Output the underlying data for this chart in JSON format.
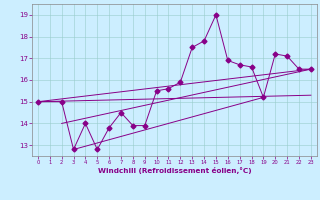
{
  "title": "",
  "xlabel": "Windchill (Refroidissement éolien,°C)",
  "ylabel": "",
  "xlim": [
    -0.5,
    23.5
  ],
  "ylim": [
    12.5,
    19.5
  ],
  "xticks": [
    0,
    1,
    2,
    3,
    4,
    5,
    6,
    7,
    8,
    9,
    10,
    11,
    12,
    13,
    14,
    15,
    16,
    17,
    18,
    19,
    20,
    21,
    22,
    23
  ],
  "yticks": [
    13,
    14,
    15,
    16,
    17,
    18,
    19
  ],
  "bg_color": "#cceeff",
  "line_color": "#880088",
  "line1_x": [
    0,
    2,
    3,
    4,
    5,
    6,
    7,
    8,
    9,
    10,
    11,
    12,
    13,
    14,
    15,
    16,
    17,
    18,
    19,
    20,
    21,
    22,
    23
  ],
  "line1_y": [
    15.0,
    15.0,
    12.8,
    14.0,
    12.8,
    13.8,
    14.5,
    13.9,
    13.9,
    15.5,
    15.6,
    15.9,
    17.5,
    17.8,
    19.0,
    16.9,
    16.7,
    16.6,
    15.2,
    17.2,
    17.1,
    16.5,
    16.5
  ],
  "line2_x": [
    0,
    23
  ],
  "line2_y": [
    15.0,
    16.5
  ],
  "line3_x": [
    0,
    23
  ],
  "line3_y": [
    15.0,
    15.3
  ],
  "line4_x": [
    2,
    23
  ],
  "line4_y": [
    14.0,
    16.5
  ],
  "line5_x": [
    3,
    19
  ],
  "line5_y": [
    12.8,
    15.2
  ]
}
